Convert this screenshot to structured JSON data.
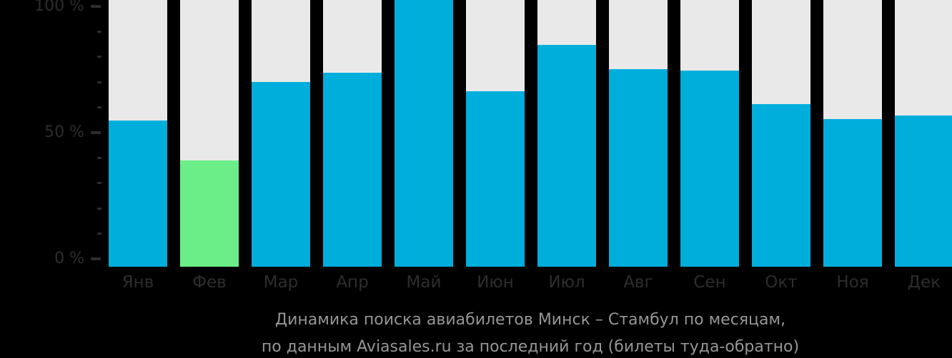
{
  "chart_data": {
    "type": "bar",
    "title": "",
    "categories": [
      "Янв",
      "Фев",
      "Мар",
      "Апр",
      "Май",
      "Июн",
      "Июл",
      "Авг",
      "Сен",
      "Окт",
      "Ноя",
      "Дек"
    ],
    "values": [
      54.8,
      39.0,
      70.1,
      73.7,
      100,
      66.4,
      84.7,
      75.1,
      74.6,
      61.3,
      55.4,
      56.8
    ],
    "unit": "%",
    "ylim": [
      0,
      100
    ],
    "ytick_values": [
      0,
      50,
      100
    ],
    "ytick_labels": [
      "0 %",
      "50 %",
      "100 %"
    ],
    "minor_tick_step": 10,
    "grid": "off",
    "legend": "none",
    "highlight_index": 1,
    "clipped_top_index": 4,
    "colors": {
      "background": "#000000",
      "bar_default": "#00AEDC",
      "bar_highlight": "#6BEE87",
      "bar_track": "#E9E9E9",
      "axis_text": "#2D2D2D",
      "tick_mark": "#2D2D2D",
      "caption_text": "#969696"
    }
  },
  "caption": {
    "line1": "Динамика поиска авиабилетов Минск – Стамбул по месяцам,",
    "line2": "по данным Aviasales.ru за последний год (билеты туда-обратно)"
  }
}
